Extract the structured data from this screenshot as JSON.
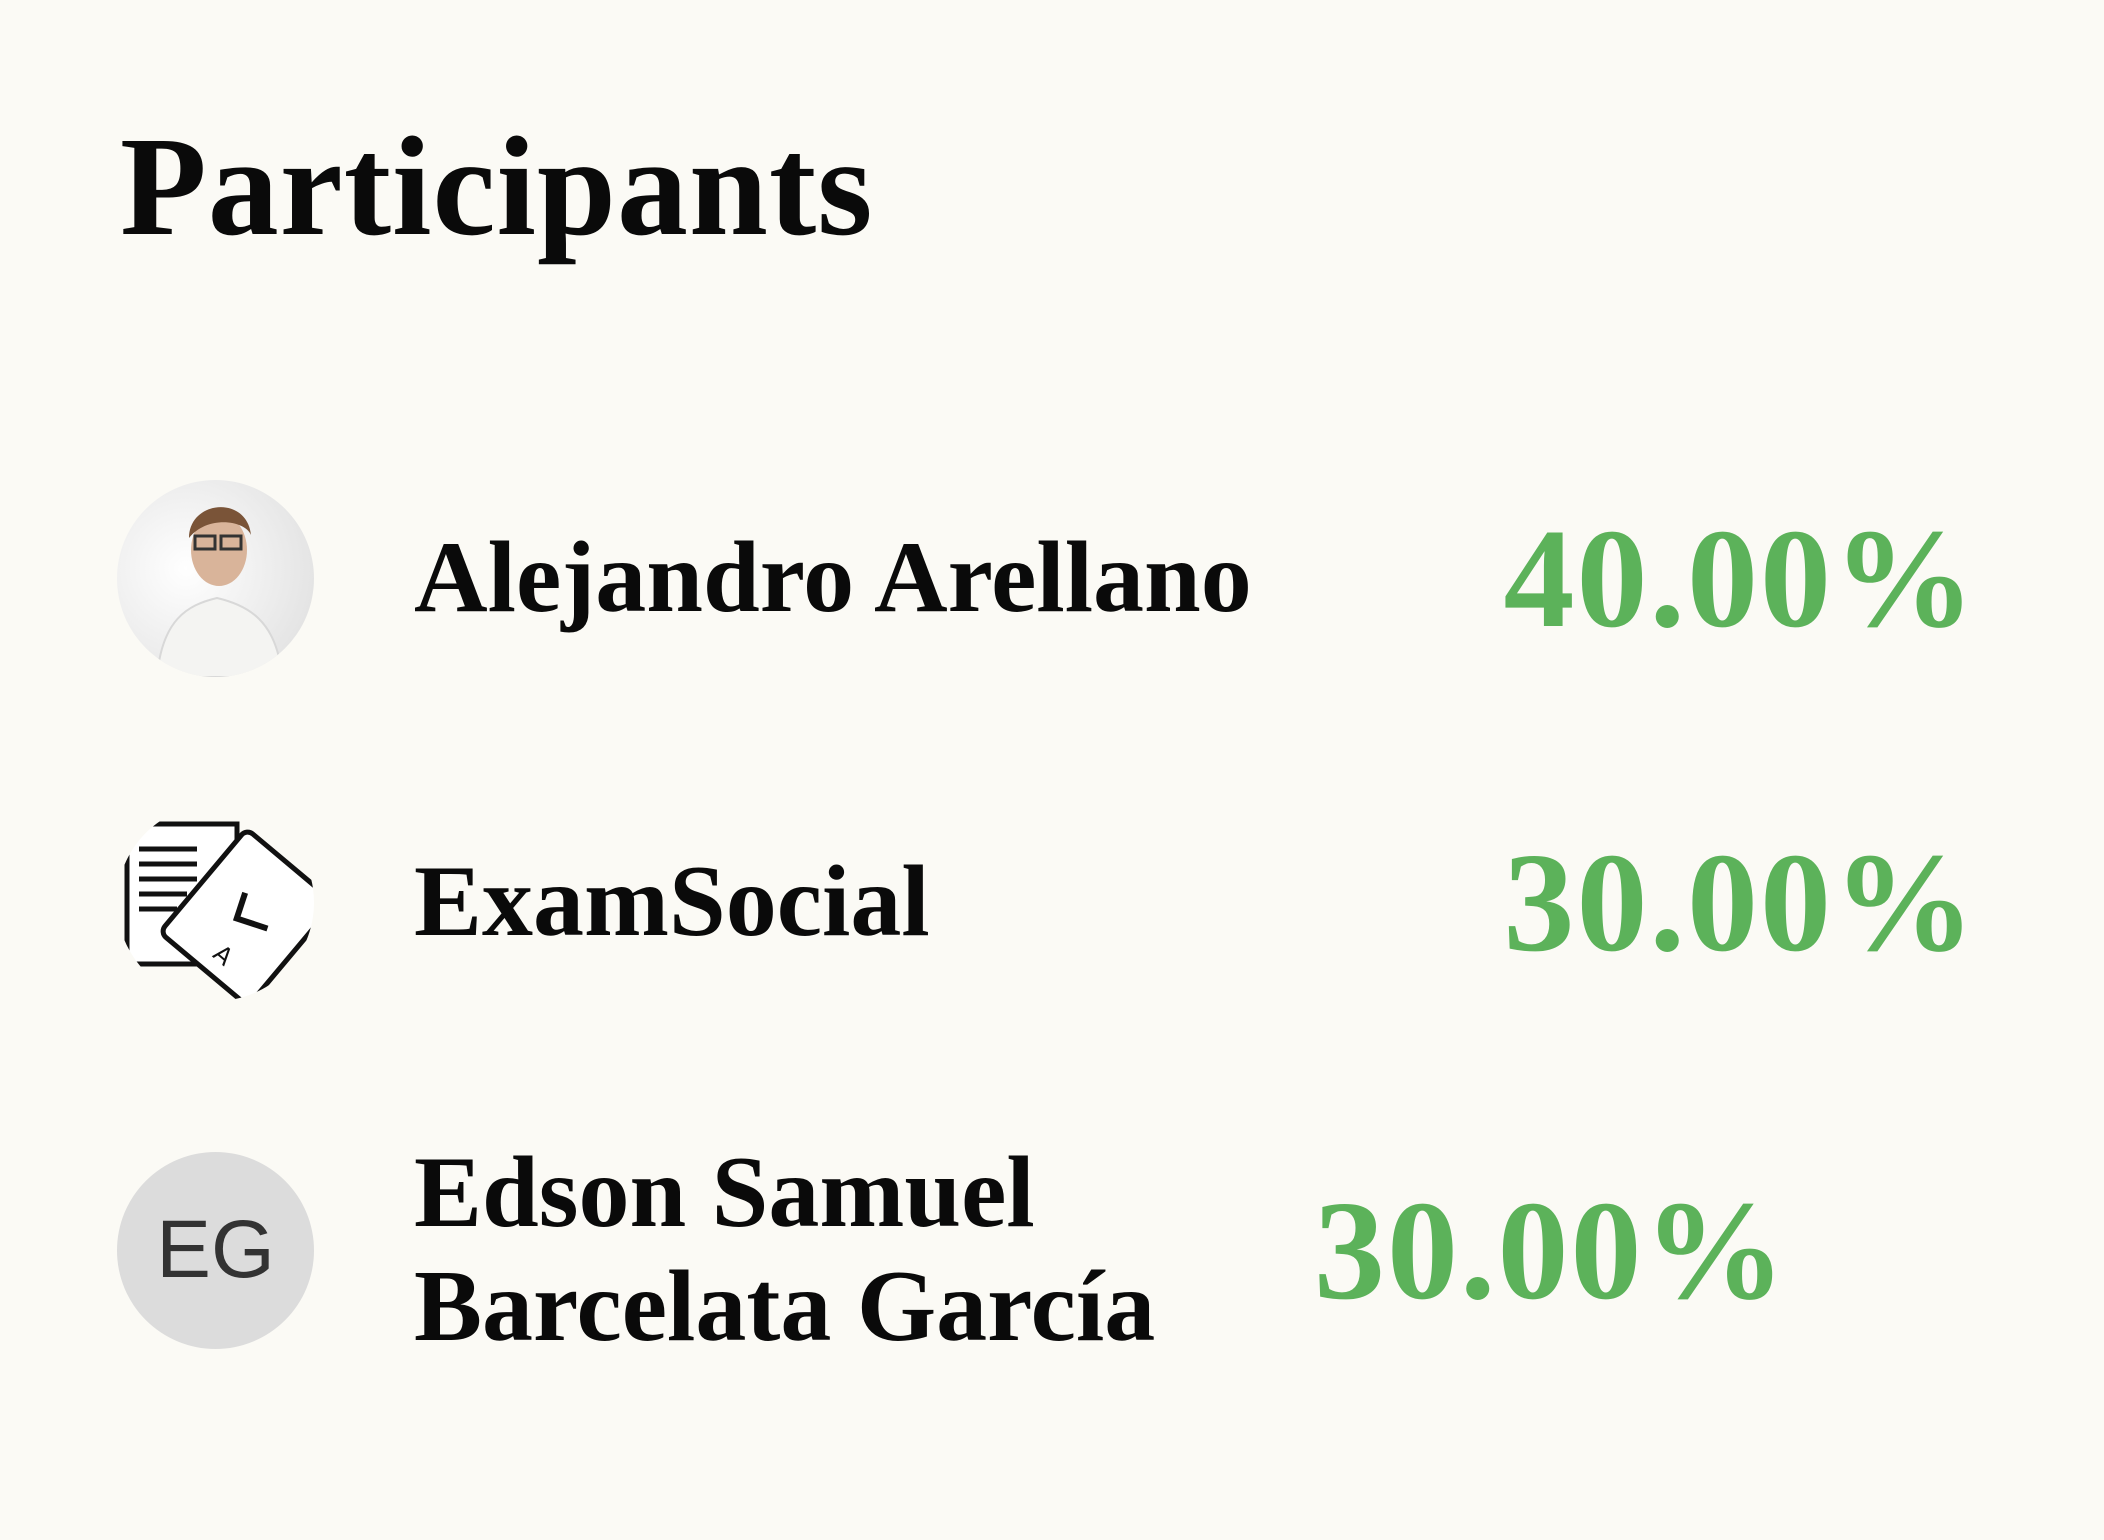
{
  "title": "Participants",
  "accent_color": "#5cb25a",
  "participants": [
    {
      "name": "Alejandro Arellano",
      "percent": "40.00%",
      "avatar": "photo"
    },
    {
      "name": "ExamSocial",
      "percent": "30.00%",
      "avatar": "exam-documents-icon"
    },
    {
      "name": "Edson Samuel Barcelata García",
      "percent": "30.00%",
      "avatar": "initials",
      "initials": "EG"
    }
  ]
}
